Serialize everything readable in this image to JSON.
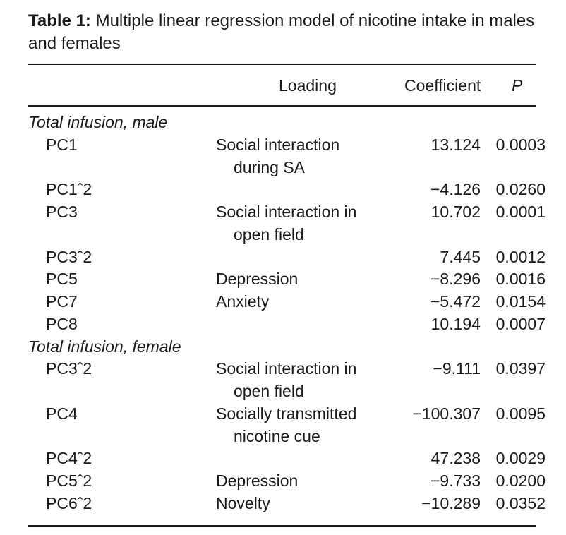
{
  "table": {
    "label": "Table 1:",
    "title": "Multiple linear regression model of nicotine intake in males and females",
    "headers": {
      "variable": "",
      "loading": "Loading",
      "coefficient": "Coefficient",
      "p": "P"
    },
    "groups": [
      {
        "name": "Total infusion, male",
        "rows": [
          {
            "variable": "PC1",
            "loading": [
              "Social interaction",
              "during SA"
            ],
            "coefficient": "13.124",
            "p": "0.0003"
          },
          {
            "variable": "PC1ˆ2",
            "loading": [],
            "coefficient": "−4.126",
            "p": "0.0260"
          },
          {
            "variable": "PC3",
            "loading": [
              "Social interaction in",
              "open field"
            ],
            "coefficient": "10.702",
            "p": "0.0001"
          },
          {
            "variable": "PC3ˆ2",
            "loading": [],
            "coefficient": "7.445",
            "p": "0.0012"
          },
          {
            "variable": "PC5",
            "loading": [
              "Depression"
            ],
            "coefficient": "−8.296",
            "p": "0.0016"
          },
          {
            "variable": "PC7",
            "loading": [
              "Anxiety"
            ],
            "coefficient": "−5.472",
            "p": "0.0154"
          },
          {
            "variable": "PC8",
            "loading": [],
            "coefficient": "10.194",
            "p": "0.0007"
          }
        ]
      },
      {
        "name": "Total infusion, female",
        "rows": [
          {
            "variable": "PC3ˆ2",
            "loading": [
              "Social interaction in",
              "open field"
            ],
            "coefficient": "−9.111",
            "p": "0.0397"
          },
          {
            "variable": "PC4",
            "loading": [
              "Socially transmitted",
              "nicotine cue"
            ],
            "coefficient": "−100.307",
            "p": "0.0095"
          },
          {
            "variable": "PC4ˆ2",
            "loading": [],
            "coefficient": "47.238",
            "p": "0.0029"
          },
          {
            "variable": "PC5ˆ2",
            "loading": [
              "Depression"
            ],
            "coefficient": "−9.733",
            "p": "0.0200"
          },
          {
            "variable": "PC6ˆ2",
            "loading": [
              "Novelty"
            ],
            "coefficient": "−10.289",
            "p": "0.0352"
          }
        ]
      }
    ]
  }
}
